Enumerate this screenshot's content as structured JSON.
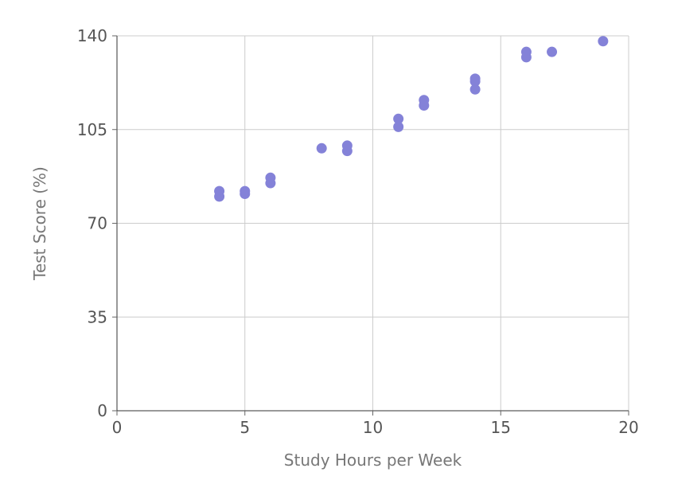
{
  "chart_data": {
    "type": "scatter",
    "title": "",
    "xlabel": "Study Hours per Week",
    "ylabel": "Test Score (%)",
    "xlim": [
      0,
      20
    ],
    "ylim": [
      0,
      140
    ],
    "xticks": [
      0,
      5,
      10,
      15,
      20
    ],
    "yticks": [
      0,
      35,
      70,
      105,
      140
    ],
    "grid": true,
    "point_color": "#8482d8",
    "points": [
      {
        "x": 4,
        "y": 82
      },
      {
        "x": 4,
        "y": 80
      },
      {
        "x": 5,
        "y": 82
      },
      {
        "x": 5,
        "y": 81
      },
      {
        "x": 6,
        "y": 87
      },
      {
        "x": 6,
        "y": 85
      },
      {
        "x": 8,
        "y": 98
      },
      {
        "x": 9,
        "y": 99
      },
      {
        "x": 9,
        "y": 97
      },
      {
        "x": 11,
        "y": 109
      },
      {
        "x": 11,
        "y": 106
      },
      {
        "x": 12,
        "y": 116
      },
      {
        "x": 12,
        "y": 114
      },
      {
        "x": 14,
        "y": 124
      },
      {
        "x": 14,
        "y": 123
      },
      {
        "x": 14,
        "y": 120
      },
      {
        "x": 16,
        "y": 134
      },
      {
        "x": 16,
        "y": 132
      },
      {
        "x": 17,
        "y": 134
      },
      {
        "x": 19,
        "y": 138
      }
    ]
  }
}
